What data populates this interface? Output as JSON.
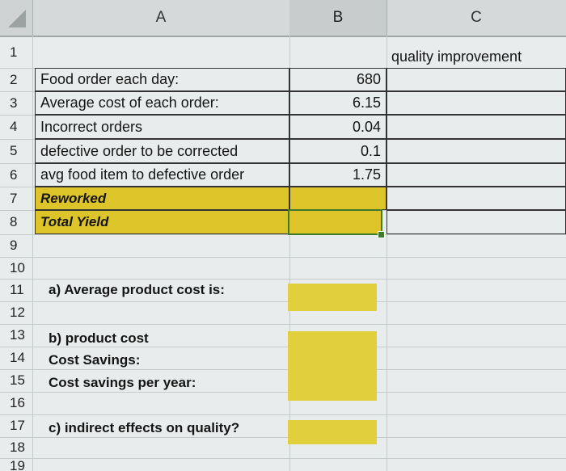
{
  "columns": [
    "A",
    "B",
    "C"
  ],
  "rows": [
    "1",
    "2",
    "3",
    "4",
    "5",
    "6",
    "7",
    "8",
    "9",
    "10",
    "11",
    "12",
    "13",
    "14",
    "15",
    "16",
    "17",
    "18",
    "19"
  ],
  "cells": {
    "c1": "quality improvement",
    "a2": "Food order each day:",
    "b2": "680",
    "a3": "Average cost of each order:",
    "b3": "6.15",
    "a4": "Incorrect orders",
    "b4": "0.04",
    "a5": "defective order to be corrected",
    "b5": "0.1",
    "a6": "avg food item to defective order",
    "b6": "1.75",
    "a7": "Reworked",
    "a8": "Total Yield",
    "a11": "a) Average product cost is:",
    "a13": "b) product cost",
    "a14": "Cost Savings:",
    "a15": "Cost savings per year:",
    "a17": "c) indirect effects on quality?"
  },
  "colors": {
    "highlight": "#ddc529",
    "selection": "#3d7a2e",
    "header": "#d6d9d9"
  },
  "selected_cell": "B8"
}
